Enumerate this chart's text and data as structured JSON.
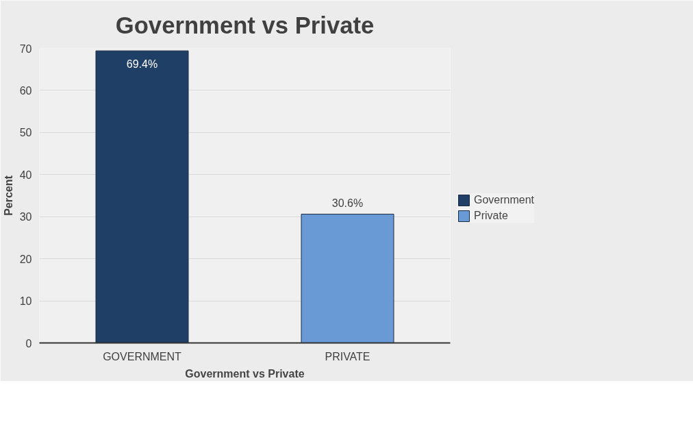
{
  "chart_data": {
    "type": "bar",
    "title": "Government vs Private",
    "xlabel": "Government vs Private",
    "ylabel": "Percent",
    "categories": [
      "GOVERNMENT",
      "PRIVATE"
    ],
    "series": [
      {
        "name": "Government",
        "color": "#203f66",
        "values": [
          69.4,
          null
        ],
        "value_labels": [
          "69.4%",
          null
        ]
      },
      {
        "name": "Private",
        "color": "#6a9ad6",
        "values": [
          null,
          30.6
        ],
        "value_labels": [
          null,
          "30.6%"
        ]
      }
    ],
    "ylim": [
      0,
      70
    ],
    "yticks": [
      0,
      10,
      20,
      30,
      40,
      50,
      60,
      70
    ],
    "grid": "y",
    "legend": "right"
  }
}
